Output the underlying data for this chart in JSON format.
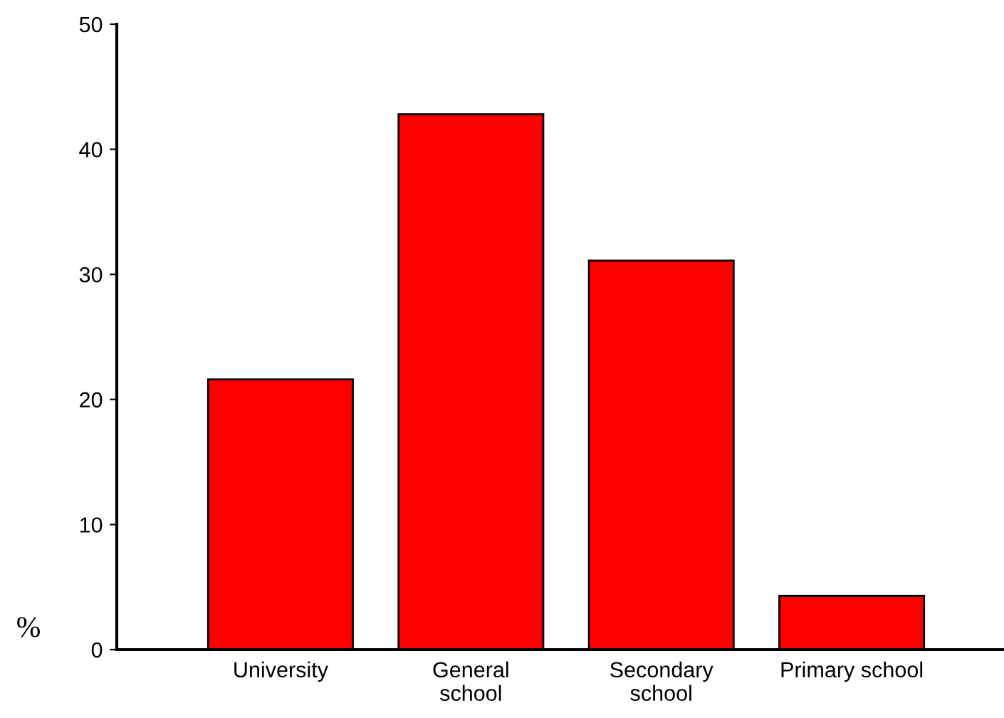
{
  "chart_data": {
    "type": "bar",
    "ylabel": "%",
    "categories": [
      "University",
      "General\nschool",
      "Secondary\nschool",
      "Primary school"
    ],
    "values": [
      21.6,
      42.8,
      31.1,
      4.3
    ],
    "color": "#ff0000",
    "ylim": [
      0,
      50
    ],
    "yticks": [
      0,
      10,
      20,
      30,
      40,
      50
    ],
    "grid": false,
    "legend": false
  }
}
